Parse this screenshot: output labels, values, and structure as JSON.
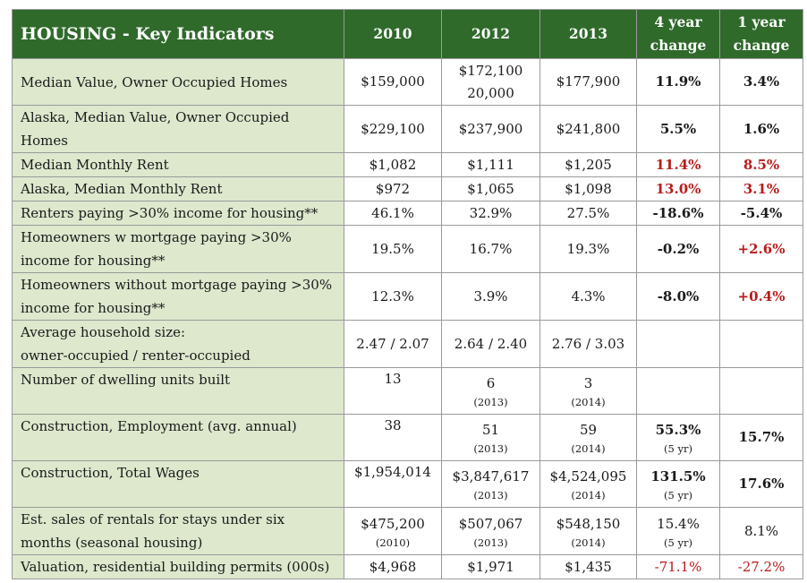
{
  "header": {
    "title": "HOUSING - Key Indicators",
    "col_2010": "2010",
    "col_2012": "2012",
    "col_2013": "2013",
    "col_4yr_line1": "4 year",
    "col_4yr_line2": "change",
    "col_1yr_line1": "1 year",
    "col_1yr_line2": "change"
  },
  "rows": [
    {
      "label": "Median Value, Owner Occupied Homes",
      "v2010": "$159,000",
      "v2012": "$172,100",
      "v2012b": "20,000",
      "v2013": "$177,900",
      "c4": "11.9%",
      "c1": "3.4%"
    },
    {
      "label": "Alaska, Median Value, Owner Occupied Homes",
      "v2010": "$229,100",
      "v2012": "$237,900",
      "v2013": "$241,800",
      "c4": "5.5%",
      "c1": "1.6%"
    },
    {
      "label": "Median Monthly Rent",
      "v2010": "$1,082",
      "v2012": "$1,111",
      "v2013": "$1,205",
      "c4": "11.4%",
      "c1": "8.5%"
    },
    {
      "label": "Alaska, Median Monthly Rent",
      "v2010": "$972",
      "v2012": "$1,065",
      "v2013": "$1,098",
      "c4": "13.0%",
      "c1": "3.1%"
    },
    {
      "label": "Renters paying >30% income for housing**",
      "v2010": "46.1%",
      "v2012": "32.9%",
      "v2013": "27.5%",
      "c4": "-18.6%",
      "c1": "-5.4%"
    },
    {
      "label": "Homeowners w mortgage paying >30% income for housing**",
      "v2010": "19.5%",
      "v2012": "16.7%",
      "v2013": "19.3%",
      "c4": "-0.2%",
      "c1": "+2.6%"
    },
    {
      "label": "Homeowners without mortgage paying >30% income for housing**",
      "v2010": "12.3%",
      "v2012": "3.9%",
      "v2013": "4.3%",
      "c4": "-8.0%",
      "c1": "+0.4%"
    },
    {
      "label_line1": "Average household size:",
      "label_line2": "owner-occupied / renter-occupied",
      "v2010": "2.47 / 2.07",
      "v2012": "2.64 / 2.40",
      "v2013": "2.76 / 3.03",
      "c4": "",
      "c1": ""
    },
    {
      "label": "Number of dwelling units built",
      "v2010": "13",
      "v2012": "6",
      "v2012_sub": "(2013)",
      "v2013": "3",
      "v2013_sub": "(2014)",
      "c4": "",
      "c1": ""
    },
    {
      "label": "Construction, Employment (avg. annual)",
      "v2010": "38",
      "v2012": "51",
      "v2012_sub": "(2013)",
      "v2013": "59",
      "v2013_sub": "(2014)",
      "c4": "55.3%",
      "c4_sub": "(5 yr)",
      "c1": "15.7%"
    },
    {
      "label": "Construction, Total Wages",
      "v2010": "$1,954,014",
      "v2012": "$3,847,617",
      "v2012_sub": "(2013)",
      "v2013": "$4,524,095",
      "v2013_sub": "(2014)",
      "c4": "131.5%",
      "c4_sub": "(5 yr)",
      "c1": "17.6%"
    },
    {
      "label": "Est. sales of rentals for stays under six months (seasonal housing)",
      "v2010": "$475,200",
      "v2010_sub": "(2010)",
      "v2012": "$507,067",
      "v2012_sub": "(2013)",
      "v2013": "$548,150",
      "v2013_sub": "(2014)",
      "c4": "15.4%",
      "c4_sub": "(5 yr)",
      "c1": "8.1%"
    },
    {
      "label": "Valuation, residential building permits (000s)",
      "v2010": "$4,968",
      "v2012": "$1,971",
      "v2013": "$1,435",
      "c4": "-71.1%",
      "c1": "-27.2%"
    }
  ],
  "colors": {
    "header_bg": "#2f6a2b",
    "label_bg": "#dde8cd",
    "negative_red": "#b71c1c"
  }
}
